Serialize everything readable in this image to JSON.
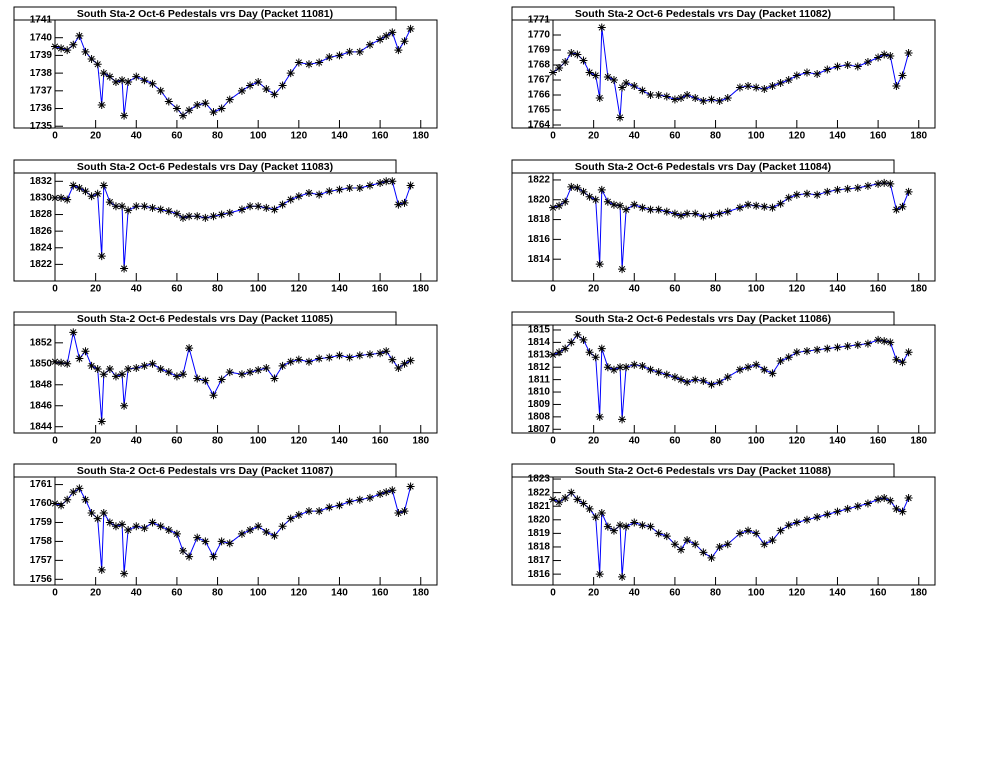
{
  "chart_data": [
    {
      "type": "line",
      "title": "South Sta-2 Oct-6 Pedestals vrs Day (Packet 11081)",
      "color": "#0000ff",
      "x": [
        0,
        3,
        6,
        9,
        12,
        15,
        18,
        21,
        23,
        24,
        27,
        30,
        33,
        34,
        36,
        40,
        44,
        48,
        52,
        56,
        60,
        63,
        66,
        70,
        74,
        78,
        82,
        86,
        92,
        96,
        100,
        104,
        108,
        112,
        116,
        120,
        125,
        130,
        135,
        140,
        145,
        150,
        155,
        160,
        163,
        166,
        169,
        172,
        175
      ],
      "values": [
        1739.5,
        1739.4,
        1739.3,
        1739.6,
        1740.1,
        1739.2,
        1738.8,
        1738.5,
        1736.2,
        1738.0,
        1737.8,
        1737.5,
        1737.6,
        1735.6,
        1737.5,
        1737.8,
        1737.6,
        1737.4,
        1737.0,
        1736.4,
        1736.0,
        1735.6,
        1735.9,
        1736.2,
        1736.3,
        1735.8,
        1736.0,
        1736.5,
        1737.0,
        1737.3,
        1737.5,
        1737.1,
        1736.8,
        1737.3,
        1738.0,
        1738.6,
        1738.5,
        1738.6,
        1738.9,
        1739.0,
        1739.2,
        1739.2,
        1739.6,
        1739.9,
        1740.1,
        1740.3,
        1739.3,
        1739.8,
        1740.5
      ],
      "xlim": [
        0,
        188
      ],
      "xticks": [
        0,
        20,
        40,
        60,
        80,
        100,
        120,
        140,
        160,
        180
      ],
      "ylim": [
        1734.9,
        1741.0
      ],
      "yticks": [
        1735,
        1736,
        1737,
        1738,
        1739,
        1740,
        1741
      ]
    },
    {
      "type": "line",
      "title": "South Sta-2 Oct-6 Pedestals vrs Day (Packet 11082)",
      "color": "#0000ff",
      "x": [
        0,
        3,
        6,
        9,
        12,
        15,
        18,
        21,
        23,
        24,
        27,
        30,
        33,
        34,
        36,
        40,
        44,
        48,
        52,
        56,
        60,
        63,
        66,
        70,
        74,
        78,
        82,
        86,
        92,
        96,
        100,
        104,
        108,
        112,
        116,
        120,
        125,
        130,
        135,
        140,
        145,
        150,
        155,
        160,
        163,
        166,
        169,
        172,
        175
      ],
      "values": [
        1767.5,
        1767.8,
        1768.2,
        1768.8,
        1768.7,
        1768.3,
        1767.5,
        1767.3,
        1765.8,
        1770.5,
        1767.2,
        1767.0,
        1764.5,
        1766.5,
        1766.8,
        1766.6,
        1766.3,
        1766.0,
        1766.0,
        1765.9,
        1765.7,
        1765.8,
        1766.0,
        1765.8,
        1765.6,
        1765.7,
        1765.6,
        1765.8,
        1766.5,
        1766.6,
        1766.5,
        1766.4,
        1766.6,
        1766.8,
        1767.0,
        1767.3,
        1767.5,
        1767.4,
        1767.7,
        1767.9,
        1768.0,
        1767.9,
        1768.2,
        1768.5,
        1768.7,
        1768.6,
        1766.6,
        1767.3,
        1768.8
      ],
      "xlim": [
        0,
        188
      ],
      "xticks": [
        0,
        20,
        40,
        60,
        80,
        100,
        120,
        140,
        160,
        180
      ],
      "ylim": [
        1763.8,
        1771.0
      ],
      "yticks": [
        1764,
        1765,
        1766,
        1767,
        1768,
        1769,
        1770,
        1771
      ]
    },
    {
      "type": "line",
      "title": "South Sta-2 Oct-6 Pedestals vrs Day (Packet 11083)",
      "color": "#0000ff",
      "x": [
        0,
        3,
        6,
        9,
        12,
        15,
        18,
        21,
        23,
        24,
        27,
        30,
        33,
        34,
        36,
        40,
        44,
        48,
        52,
        56,
        60,
        63,
        66,
        70,
        74,
        78,
        82,
        86,
        92,
        96,
        100,
        104,
        108,
        112,
        116,
        120,
        125,
        130,
        135,
        140,
        145,
        150,
        155,
        160,
        163,
        166,
        169,
        172,
        175
      ],
      "values": [
        1830,
        1830,
        1829.8,
        1831.5,
        1831.2,
        1830.8,
        1830.2,
        1830.5,
        1823,
        1831.5,
        1829.5,
        1829,
        1829,
        1821.5,
        1828.5,
        1829,
        1829,
        1828.8,
        1828.6,
        1828.4,
        1828.1,
        1827.6,
        1827.8,
        1827.8,
        1827.6,
        1827.8,
        1828,
        1828.2,
        1828.6,
        1829,
        1829,
        1828.8,
        1828.6,
        1829.2,
        1829.8,
        1830.2,
        1830.6,
        1830.4,
        1830.8,
        1831,
        1831.2,
        1831.2,
        1831.5,
        1831.8,
        1832,
        1832,
        1829.2,
        1829.4,
        1831.5
      ],
      "xlim": [
        0,
        188
      ],
      "xticks": [
        0,
        20,
        40,
        60,
        80,
        100,
        120,
        140,
        160,
        180
      ],
      "ylim": [
        1820,
        1833
      ],
      "yticks": [
        1822,
        1824,
        1826,
        1828,
        1830,
        1832
      ]
    },
    {
      "type": "line",
      "title": "South Sta-2 Oct-6 Pedestals vrs Day (Packet 11084)",
      "color": "#0000ff",
      "x": [
        0,
        3,
        6,
        9,
        12,
        15,
        18,
        21,
        23,
        24,
        27,
        30,
        33,
        34,
        36,
        40,
        44,
        48,
        52,
        56,
        60,
        63,
        66,
        70,
        74,
        78,
        82,
        86,
        92,
        96,
        100,
        104,
        108,
        112,
        116,
        120,
        125,
        130,
        135,
        140,
        145,
        150,
        155,
        160,
        163,
        166,
        169,
        172,
        175
      ],
      "values": [
        1819.2,
        1819.4,
        1819.8,
        1821.3,
        1821.2,
        1820.8,
        1820.3,
        1820,
        1813.5,
        1821,
        1819.8,
        1819.5,
        1819.4,
        1813,
        1819,
        1819.5,
        1819.2,
        1819,
        1819,
        1818.8,
        1818.6,
        1818.4,
        1818.6,
        1818.6,
        1818.3,
        1818.4,
        1818.6,
        1818.8,
        1819.2,
        1819.5,
        1819.4,
        1819.3,
        1819.2,
        1819.6,
        1820.2,
        1820.5,
        1820.6,
        1820.5,
        1820.8,
        1821,
        1821.1,
        1821.2,
        1821.4,
        1821.6,
        1821.7,
        1821.6,
        1819,
        1819.3,
        1820.8
      ],
      "xlim": [
        0,
        188
      ],
      "xticks": [
        0,
        20,
        40,
        60,
        80,
        100,
        120,
        140,
        160,
        180
      ],
      "ylim": [
        1811.8,
        1822.7
      ],
      "yticks": [
        1814,
        1816,
        1818,
        1820,
        1822
      ]
    },
    {
      "type": "line",
      "title": "South Sta-2 Oct-6 Pedestals vrs Day (Packet 11085)",
      "color": "#0000ff",
      "x": [
        0,
        3,
        6,
        9,
        12,
        15,
        18,
        21,
        23,
        24,
        27,
        30,
        33,
        34,
        36,
        40,
        44,
        48,
        52,
        56,
        60,
        63,
        66,
        70,
        74,
        78,
        82,
        86,
        92,
        96,
        100,
        104,
        108,
        112,
        116,
        120,
        125,
        130,
        135,
        140,
        145,
        150,
        155,
        160,
        163,
        166,
        169,
        172,
        175
      ],
      "values": [
        1850.2,
        1850.1,
        1850,
        1853,
        1850.5,
        1851.2,
        1849.8,
        1849.5,
        1844.5,
        1849,
        1849.5,
        1848.8,
        1849,
        1846,
        1849.5,
        1849.6,
        1849.8,
        1850,
        1849.5,
        1849.2,
        1848.8,
        1849,
        1851.5,
        1848.6,
        1848.4,
        1847,
        1848.5,
        1849.2,
        1849,
        1849.2,
        1849.4,
        1849.6,
        1848.6,
        1849.8,
        1850.2,
        1850.4,
        1850.2,
        1850.5,
        1850.6,
        1850.8,
        1850.6,
        1850.8,
        1850.9,
        1851,
        1851.2,
        1850.4,
        1849.6,
        1850,
        1850.3
      ],
      "xlim": [
        0,
        188
      ],
      "xticks": [
        0,
        20,
        40,
        60,
        80,
        100,
        120,
        140,
        160,
        180
      ],
      "ylim": [
        1843.4,
        1853.7
      ],
      "yticks": [
        1844,
        1846,
        1848,
        1850,
        1852
      ]
    },
    {
      "type": "line",
      "title": "South Sta-2 Oct-6 Pedestals vrs Day (Packet 11086)",
      "color": "#0000ff",
      "x": [
        0,
        3,
        6,
        9,
        12,
        15,
        18,
        21,
        23,
        24,
        27,
        30,
        33,
        34,
        36,
        40,
        44,
        48,
        52,
        56,
        60,
        63,
        66,
        70,
        74,
        78,
        82,
        86,
        92,
        96,
        100,
        104,
        108,
        112,
        116,
        120,
        125,
        130,
        135,
        140,
        145,
        150,
        155,
        160,
        163,
        166,
        169,
        172,
        175
      ],
      "values": [
        1813,
        1813.2,
        1813.5,
        1814,
        1814.6,
        1814.2,
        1813.2,
        1812.8,
        1808,
        1813.5,
        1812,
        1811.8,
        1812,
        1807.8,
        1812,
        1812.2,
        1812.1,
        1811.8,
        1811.6,
        1811.4,
        1811.2,
        1811,
        1810.8,
        1811,
        1810.9,
        1810.6,
        1810.8,
        1811.2,
        1811.8,
        1812,
        1812.2,
        1811.8,
        1811.5,
        1812.5,
        1812.8,
        1813.2,
        1813.3,
        1813.4,
        1813.5,
        1813.6,
        1813.7,
        1813.8,
        1813.9,
        1814.2,
        1814.1,
        1814,
        1812.6,
        1812.4,
        1813.2
      ],
      "xlim": [
        0,
        188
      ],
      "xticks": [
        0,
        20,
        40,
        60,
        80,
        100,
        120,
        140,
        160,
        180
      ],
      "ylim": [
        1806.7,
        1815.4
      ],
      "yticks": [
        1807,
        1808,
        1809,
        1810,
        1811,
        1812,
        1813,
        1814,
        1815
      ]
    },
    {
      "type": "line",
      "title": "South Sta-2 Oct-6 Pedestals vrs Day (Packet 11087)",
      "color": "#0000ff",
      "x": [
        0,
        3,
        6,
        9,
        12,
        15,
        18,
        21,
        23,
        24,
        27,
        30,
        33,
        34,
        36,
        40,
        44,
        48,
        52,
        56,
        60,
        63,
        66,
        70,
        74,
        78,
        82,
        86,
        92,
        96,
        100,
        104,
        108,
        112,
        116,
        120,
        125,
        130,
        135,
        140,
        145,
        150,
        155,
        160,
        163,
        166,
        169,
        172,
        175
      ],
      "values": [
        1760,
        1759.9,
        1760.2,
        1760.6,
        1760.8,
        1760.2,
        1759.5,
        1759.2,
        1756.5,
        1759.5,
        1759,
        1758.8,
        1758.9,
        1756.3,
        1758.6,
        1758.8,
        1758.7,
        1759,
        1758.8,
        1758.6,
        1758.4,
        1757.5,
        1757.2,
        1758.2,
        1758.0,
        1757.2,
        1758,
        1757.9,
        1758.4,
        1758.6,
        1758.8,
        1758.5,
        1758.3,
        1758.8,
        1759.2,
        1759.4,
        1759.6,
        1759.6,
        1759.8,
        1759.9,
        1760.1,
        1760.2,
        1760.3,
        1760.5,
        1760.6,
        1760.7,
        1759.5,
        1759.6,
        1760.9
      ],
      "xlim": [
        0,
        188
      ],
      "xticks": [
        0,
        20,
        40,
        60,
        80,
        100,
        120,
        140,
        160,
        180
      ],
      "ylim": [
        1755.7,
        1761.4
      ],
      "yticks": [
        1756,
        1757,
        1758,
        1759,
        1760,
        1761
      ]
    },
    {
      "type": "line",
      "title": "South Sta-2 Oct-6 Pedestals vrs Day (Packet 11088)",
      "color": "#0000ff",
      "x": [
        0,
        3,
        6,
        9,
        12,
        15,
        18,
        21,
        23,
        24,
        27,
        30,
        33,
        34,
        36,
        40,
        44,
        48,
        52,
        56,
        60,
        63,
        66,
        70,
        74,
        78,
        82,
        86,
        92,
        96,
        100,
        104,
        108,
        112,
        116,
        120,
        125,
        130,
        135,
        140,
        145,
        150,
        155,
        160,
        163,
        166,
        169,
        172,
        175
      ],
      "values": [
        1821.5,
        1821.3,
        1821.6,
        1822,
        1821.5,
        1821.2,
        1820.8,
        1820.2,
        1816,
        1820.5,
        1819.5,
        1819.2,
        1819.6,
        1815.8,
        1819.5,
        1819.8,
        1819.6,
        1819.5,
        1819,
        1818.8,
        1818.2,
        1817.8,
        1818.5,
        1818.2,
        1817.6,
        1817.2,
        1818,
        1818.2,
        1819,
        1819.2,
        1819,
        1818.2,
        1818.5,
        1819.2,
        1819.6,
        1819.8,
        1820,
        1820.2,
        1820.4,
        1820.6,
        1820.8,
        1821,
        1821.2,
        1821.5,
        1821.6,
        1821.4,
        1820.8,
        1820.6,
        1821.6
      ],
      "xlim": [
        0,
        188
      ],
      "xticks": [
        0,
        20,
        40,
        60,
        80,
        100,
        120,
        140,
        160,
        180
      ],
      "ylim": [
        1815.2,
        1823.15
      ],
      "yticks": [
        1816,
        1817,
        1818,
        1819,
        1820,
        1821,
        1822,
        1823
      ]
    }
  ]
}
